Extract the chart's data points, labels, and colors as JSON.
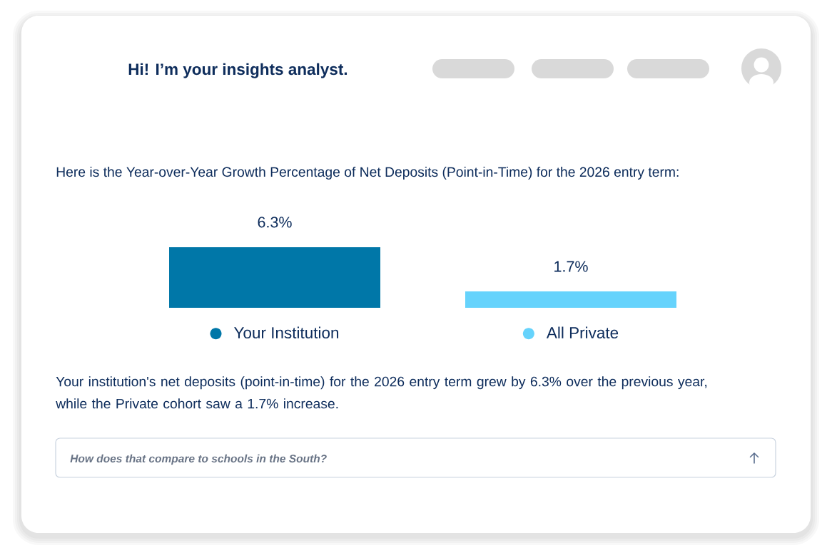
{
  "chart_data": {
    "type": "bar",
    "title": "Here is the Year-over-Year Growth Percentage of Net Deposits (Point-in-Time) for the 2026 entry term:",
    "categories": [
      "Your Institution",
      "All Private"
    ],
    "values": [
      6.3,
      1.7
    ],
    "colors": [
      "#0077a8",
      "#66d3fc"
    ],
    "value_labels": [
      "6.3%",
      "1.7%"
    ],
    "annotations": [
      "Hi! I’m your insights analyst.",
      "Your institution's net deposits (point-in-time) for the 2026 entry term grew by 6.3% over the previous year, while the Private cohort saw a 1.7% increase.",
      "How does that compare to schools in the South?"
    ]
  }
}
